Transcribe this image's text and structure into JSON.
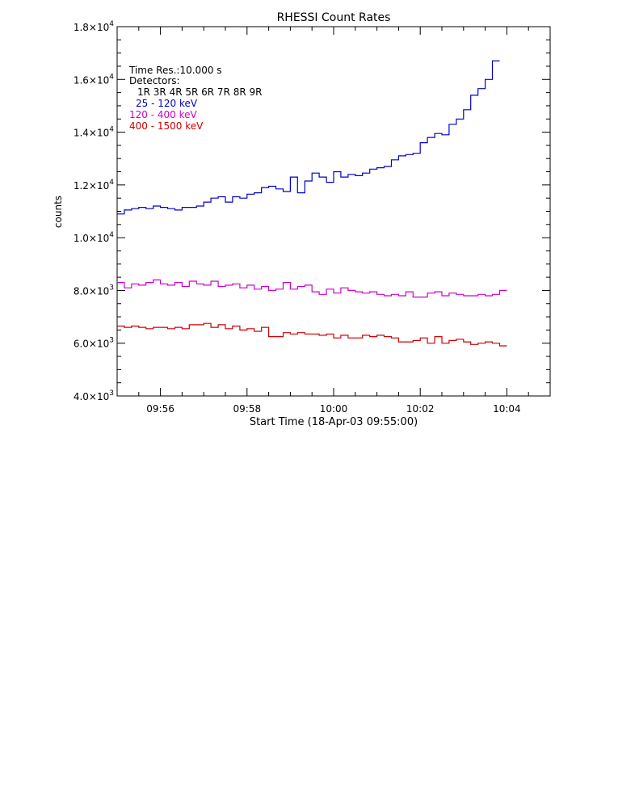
{
  "chart_data": {
    "type": "line",
    "title": "RHESSI Count Rates",
    "xlabel": "Start Time (18-Apr-03 09:55:00)",
    "ylabel": "counts",
    "x_unit": "seconds after 09:55:00",
    "xlim": [
      0,
      600
    ],
    "ylim": [
      4000,
      18000
    ],
    "step_seconds": 10,
    "x_ticks": [
      {
        "label": "09:56",
        "value": 60
      },
      {
        "label": "09:58",
        "value": 180
      },
      {
        "label": "10:00",
        "value": 300
      },
      {
        "label": "10:02",
        "value": 420
      },
      {
        "label": "10:04",
        "value": 540
      }
    ],
    "y_ticks": [
      {
        "mant": "4.0",
        "exp": "3",
        "value": 4000
      },
      {
        "mant": "6.0",
        "exp": "3",
        "value": 6000
      },
      {
        "mant": "8.0",
        "exp": "3",
        "value": 8000
      },
      {
        "mant": "1.0",
        "exp": "4",
        "value": 10000
      },
      {
        "mant": "1.2",
        "exp": "4",
        "value": 12000
      },
      {
        "mant": "1.4",
        "exp": "4",
        "value": 14000
      },
      {
        "mant": "1.6",
        "exp": "4",
        "value": 16000
      },
      {
        "mant": "1.8",
        "exp": "4",
        "value": 18000
      }
    ],
    "legend": {
      "time_res": "Time Res.:10.000 s",
      "detectors_label": "Detectors:",
      "detectors": "1R 3R 4R 5R 6R 7R 8R 9R"
    },
    "series": [
      {
        "name": "25 - 120 keV",
        "color": "#0000cc",
        "start": 0,
        "values": [
          10900,
          11050,
          11100,
          11150,
          11100,
          11200,
          11150,
          11100,
          11050,
          11150,
          11150,
          11200,
          11350,
          11500,
          11550,
          11350,
          11550,
          11500,
          11650,
          11700,
          11900,
          11950,
          11850,
          11750,
          12300,
          11700,
          12150,
          12450,
          12300,
          12100,
          12500,
          12300,
          12400,
          12350,
          12450,
          12600,
          12650,
          12700,
          12950,
          13100,
          13150,
          13200,
          13600,
          13800,
          13950,
          13900,
          14300,
          14500,
          14850,
          15400,
          15650,
          16000,
          16700
        ]
      },
      {
        "name": "120 - 400 keV",
        "color": "#cc00cc",
        "start": 0,
        "values": [
          8300,
          8100,
          8250,
          8200,
          8300,
          8400,
          8250,
          8200,
          8300,
          8150,
          8350,
          8250,
          8200,
          8350,
          8150,
          8200,
          8250,
          8100,
          8200,
          8050,
          8150,
          8000,
          8050,
          8300,
          8050,
          8150,
          8200,
          7950,
          7850,
          8050,
          7900,
          8100,
          8000,
          7950,
          7900,
          7950,
          7850,
          7800,
          7850,
          7800,
          7950,
          7750,
          7750,
          7900,
          7950,
          7800,
          7900,
          7850,
          7800,
          7800,
          7850,
          7800,
          7850,
          8000
        ]
      },
      {
        "name": "400 - 1500 keV",
        "color": "#cc0000",
        "start": 0,
        "values": [
          6650,
          6600,
          6650,
          6600,
          6550,
          6600,
          6600,
          6550,
          6600,
          6550,
          6700,
          6700,
          6750,
          6600,
          6700,
          6550,
          6650,
          6500,
          6550,
          6450,
          6600,
          6250,
          6250,
          6400,
          6350,
          6400,
          6350,
          6350,
          6300,
          6350,
          6200,
          6300,
          6200,
          6200,
          6300,
          6250,
          6300,
          6250,
          6200,
          6050,
          6050,
          6100,
          6200,
          6000,
          6250,
          6000,
          6100,
          6150,
          6050,
          5950,
          6000,
          6050,
          6000,
          5900
        ]
      }
    ]
  }
}
